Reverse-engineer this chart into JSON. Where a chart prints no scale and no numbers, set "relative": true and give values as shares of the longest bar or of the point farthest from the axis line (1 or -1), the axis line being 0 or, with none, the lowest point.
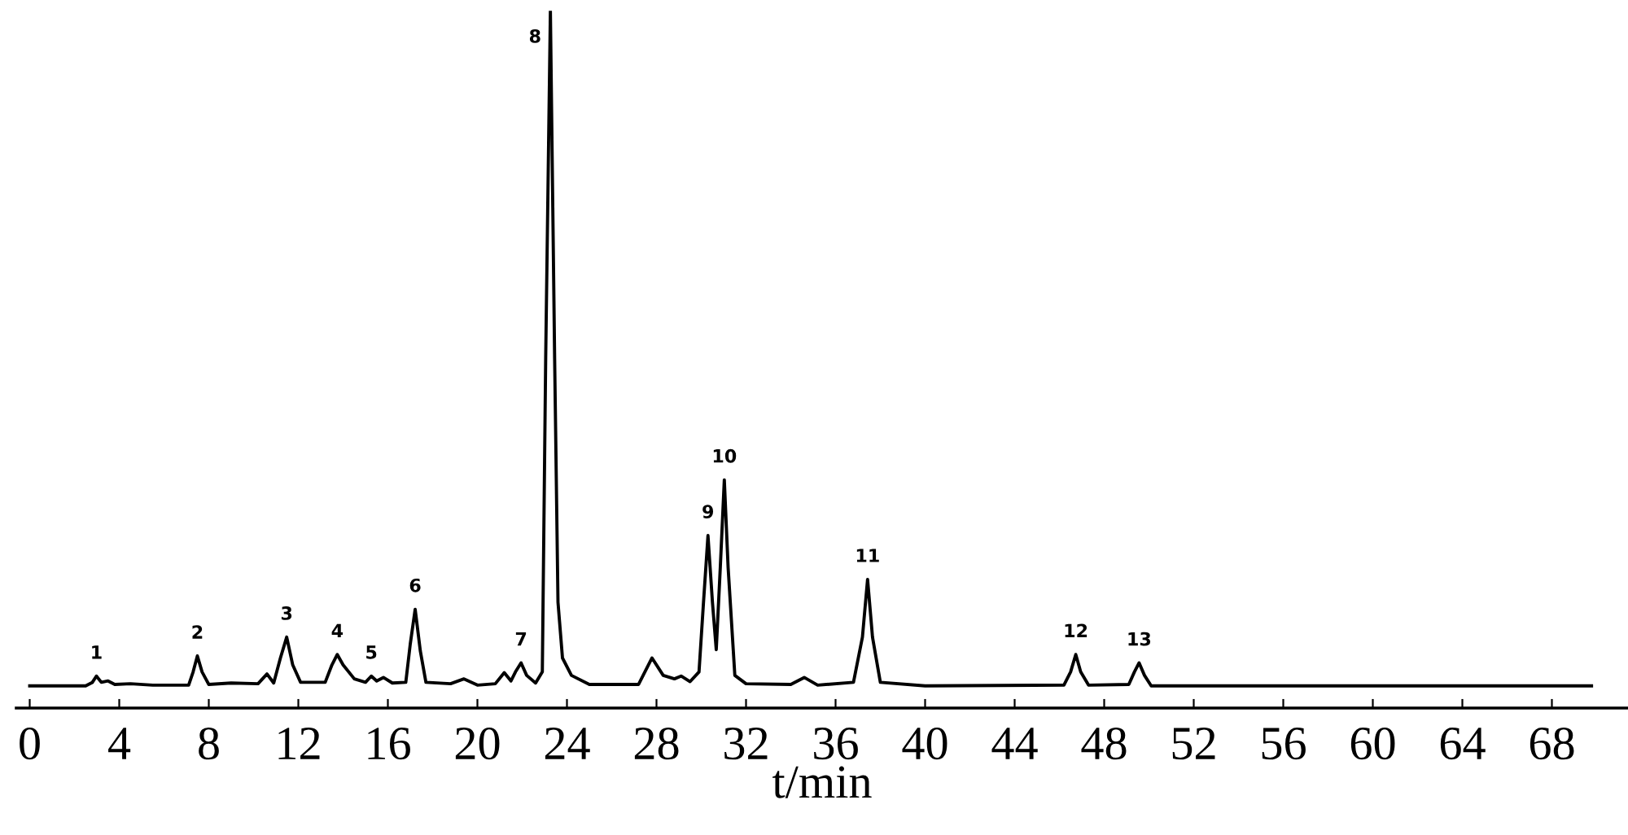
{
  "chart_data": {
    "type": "line",
    "relative": true,
    "xlabel": "t/min",
    "xlim": [
      -0.6,
      71.4
    ],
    "xticks": [
      0,
      4,
      8,
      12,
      16,
      20,
      24,
      28,
      32,
      36,
      40,
      44,
      48,
      52,
      56,
      60,
      64,
      68
    ],
    "marker": "none",
    "line_style": "solid",
    "series": [
      {
        "color": "#000000",
        "x": [
          0,
          2.5,
          2.8,
          2.98,
          3.2,
          3.5,
          3.8,
          4.5,
          5.5,
          7.1,
          7.3,
          7.49,
          7.7,
          8.0,
          9.0,
          10.2,
          10.6,
          10.9,
          11.2,
          11.48,
          11.75,
          12.1,
          13.2,
          13.5,
          13.74,
          14.0,
          14.5,
          15.0,
          15.26,
          15.5,
          15.8,
          16.2,
          16.8,
          17.0,
          17.22,
          17.45,
          17.7,
          18.8,
          19.4,
          20.0,
          20.8,
          21.2,
          21.5,
          21.7,
          21.95,
          22.2,
          22.6,
          22.9,
          23.05,
          23.26,
          23.45,
          23.6,
          23.8,
          24.2,
          25.0,
          27.2,
          27.8,
          28.3,
          28.8,
          29.1,
          29.5,
          29.9,
          30.1,
          30.3,
          30.5,
          30.67,
          30.85,
          31.03,
          31.2,
          31.5,
          32.0,
          34.0,
          34.6,
          35.2,
          36.8,
          37.2,
          37.43,
          37.65,
          38.0,
          40.0,
          46.2,
          46.5,
          46.73,
          46.95,
          47.3,
          49.1,
          49.35,
          49.56,
          49.8,
          50.1,
          55.0,
          60.0,
          65.0,
          69.77
        ],
        "values": [
          0.03,
          0.03,
          0.035,
          0.044,
          0.035,
          0.037,
          0.032,
          0.033,
          0.031,
          0.031,
          0.05,
          0.073,
          0.05,
          0.032,
          0.034,
          0.033,
          0.047,
          0.034,
          0.07,
          0.1,
          0.06,
          0.035,
          0.035,
          0.06,
          0.075,
          0.06,
          0.04,
          0.035,
          0.044,
          0.037,
          0.042,
          0.034,
          0.035,
          0.09,
          0.14,
          0.08,
          0.035,
          0.033,
          0.04,
          0.031,
          0.033,
          0.049,
          0.037,
          0.05,
          0.063,
          0.045,
          0.034,
          0.05,
          0.5,
          1.0,
          0.5,
          0.15,
          0.07,
          0.045,
          0.032,
          0.032,
          0.07,
          0.045,
          0.04,
          0.044,
          0.036,
          0.05,
          0.15,
          0.246,
          0.15,
          0.082,
          0.2,
          0.326,
          0.2,
          0.045,
          0.033,
          0.032,
          0.042,
          0.031,
          0.035,
          0.1,
          0.183,
          0.1,
          0.035,
          0.03,
          0.031,
          0.05,
          0.075,
          0.05,
          0.031,
          0.032,
          0.05,
          0.063,
          0.045,
          0.03,
          0.03,
          0.03,
          0.03,
          0.03
        ]
      }
    ],
    "annotations": [
      {
        "text": "1",
        "x": 2.98,
        "y": 0.044
      },
      {
        "text": "2",
        "x": 7.49,
        "y": 0.073
      },
      {
        "text": "3",
        "x": 11.48,
        "y": 0.1
      },
      {
        "text": "4",
        "x": 13.74,
        "y": 0.075
      },
      {
        "text": "5",
        "x": 15.26,
        "y": 0.044
      },
      {
        "text": "6",
        "x": 17.22,
        "y": 0.14
      },
      {
        "text": "7",
        "x": 21.95,
        "y": 0.063
      },
      {
        "text": "8",
        "x": 23.26,
        "y": 1.0
      },
      {
        "text": "9",
        "x": 30.3,
        "y": 0.246
      },
      {
        "text": "10",
        "x": 31.03,
        "y": 0.326
      },
      {
        "text": "11",
        "x": 37.43,
        "y": 0.183
      },
      {
        "text": "12",
        "x": 46.73,
        "y": 0.075
      },
      {
        "text": "13",
        "x": 49.56,
        "y": 0.063
      }
    ]
  }
}
